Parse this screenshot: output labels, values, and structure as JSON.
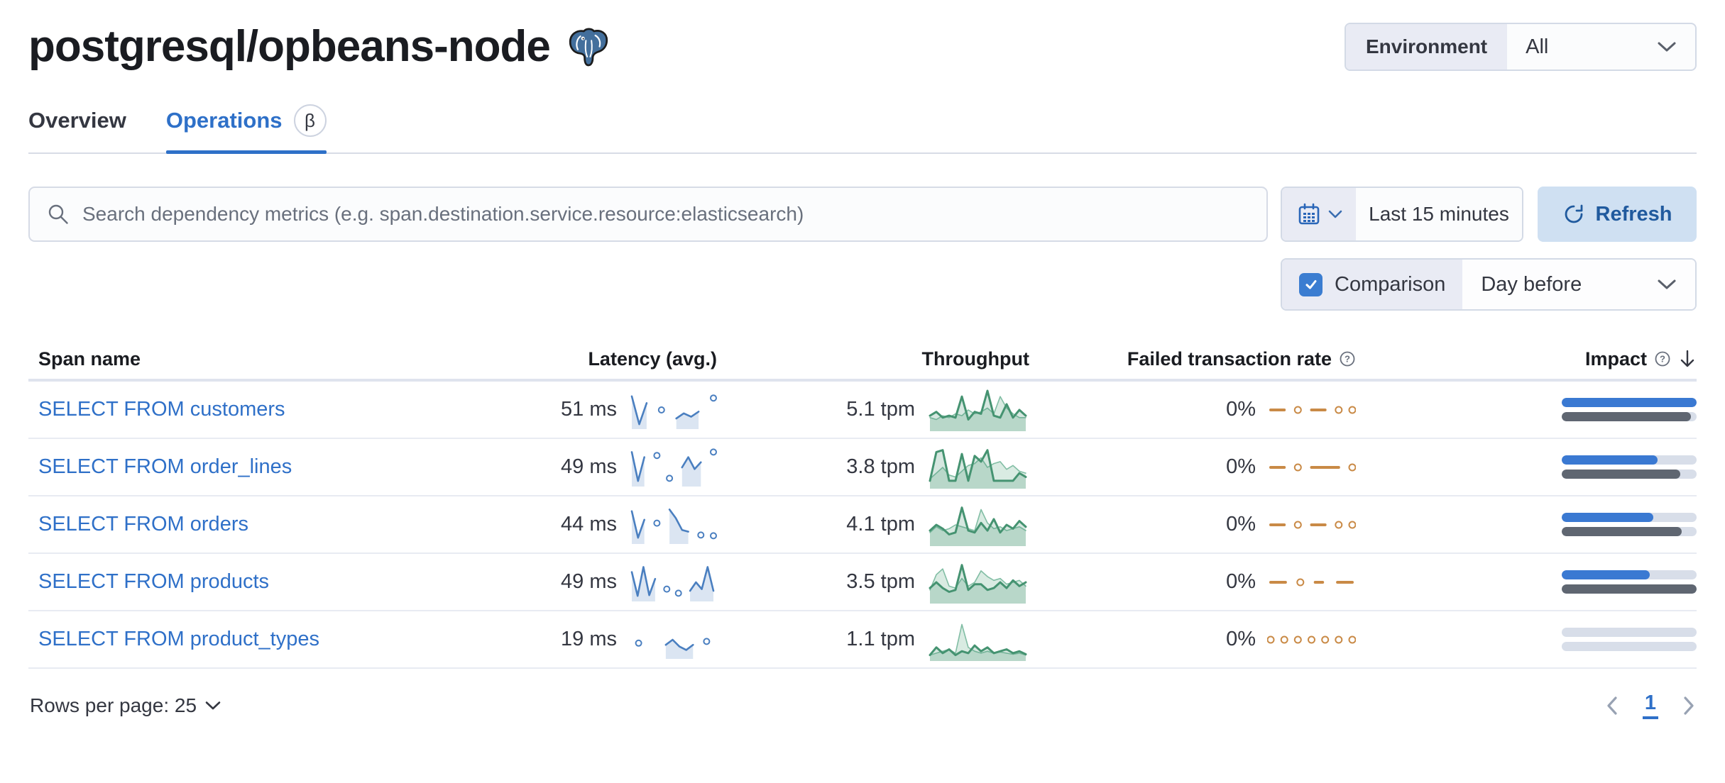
{
  "page": {
    "title": "postgresql/opbeans-node"
  },
  "environment_select": {
    "label": "Environment",
    "value": "All"
  },
  "tabs": {
    "overview": "Overview",
    "operations": "Operations",
    "operations_beta": "β"
  },
  "toolbar": {
    "search_placeholder": "Search dependency metrics (e.g. span.destination.service.resource:elasticsearch)",
    "time_range": "Last 15 minutes",
    "refresh_label": "Refresh",
    "comparison_label": "Comparison",
    "comparison_checked": true,
    "comparison_value": "Day before"
  },
  "table": {
    "headers": {
      "span_name": "Span name",
      "latency": "Latency (avg.)",
      "throughput": "Throughput",
      "failed_rate": "Failed transaction rate",
      "impact": "Impact"
    },
    "sort": {
      "column": "Impact",
      "direction": "desc"
    },
    "rows": [
      {
        "span_name": "SELECT FROM customers",
        "latency": "51 ms",
        "latency_spark": [
          0.9,
          0.08,
          0.7,
          null,
          0.5,
          null,
          0.25,
          0.4,
          0.3,
          0.45,
          null,
          0.85
        ],
        "throughput": "5.1 tpm",
        "throughput_spark": [
          0.35,
          0.45,
          0.3,
          0.35,
          0.3,
          0.85,
          0.25,
          0.45,
          0.4,
          1.0,
          0.35,
          0.3,
          0.65,
          0.3,
          0.5,
          0.35
        ],
        "throughput_spark_prev": [
          0.3,
          0.25,
          0.35,
          0.3,
          0.4,
          0.35,
          0.5,
          0.4,
          0.45,
          0.55,
          0.4,
          0.85,
          0.55,
          0.4,
          0.3,
          0.3
        ],
        "failed_rate": "0%",
        "failed_spark": [
          0.5,
          0.5,
          0.5,
          null,
          0.5,
          null,
          0.5,
          0.5,
          0.5,
          null,
          0.5,
          null,
          0.5
        ],
        "impact_current": 100,
        "impact_previous": 96
      },
      {
        "span_name": "SELECT FROM order_lines",
        "latency": "49 ms",
        "latency_spark": [
          0.95,
          0.1,
          0.8,
          null,
          0.85,
          null,
          0.18,
          null,
          0.5,
          0.8,
          0.45,
          0.65,
          null,
          0.95
        ],
        "throughput": "3.8 tpm",
        "throughput_spark": [
          0.15,
          0.9,
          0.95,
          0.15,
          0.15,
          0.85,
          0.15,
          0.8,
          0.65,
          0.95,
          0.15,
          0.15,
          0.15,
          0.15,
          0.35,
          0.25
        ],
        "throughput_spark_prev": [
          0.2,
          0.35,
          0.5,
          0.3,
          0.25,
          0.4,
          0.55,
          0.6,
          0.75,
          0.5,
          0.6,
          0.65,
          0.45,
          0.55,
          0.4,
          0.35
        ],
        "failed_rate": "0%",
        "failed_spark": [
          0.5,
          0.5,
          0.5,
          null,
          0.5,
          null,
          0.5,
          0.5,
          0.5,
          0.5,
          0.5,
          null,
          0.5
        ],
        "impact_current": 71,
        "impact_previous": 88
      },
      {
        "span_name": "SELECT FROM orders",
        "latency": "44 ms",
        "latency_spark": [
          0.9,
          0.12,
          0.65,
          null,
          0.55,
          null,
          0.95,
          0.7,
          0.35,
          0.3,
          null,
          0.2,
          null,
          0.18
        ],
        "throughput": "4.1 tpm",
        "throughput_spark": [
          0.35,
          0.5,
          0.4,
          0.25,
          0.3,
          0.95,
          0.35,
          0.3,
          0.55,
          0.35,
          0.65,
          0.3,
          0.5,
          0.4,
          0.6,
          0.45
        ],
        "throughput_spark_prev": [
          0.3,
          0.45,
          0.35,
          0.4,
          0.5,
          0.45,
          0.4,
          0.35,
          0.9,
          0.55,
          0.4,
          0.45,
          0.35,
          0.4,
          0.45,
          0.35
        ],
        "failed_rate": "0%",
        "failed_spark": [
          0.5,
          0.5,
          0.5,
          null,
          0.5,
          null,
          0.5,
          0.5,
          0.5,
          null,
          0.5,
          null,
          0.5
        ],
        "impact_current": 68,
        "impact_previous": 89
      },
      {
        "span_name": "SELECT FROM products",
        "latency": "49 ms",
        "latency_spark": [
          0.8,
          0.1,
          0.95,
          0.12,
          0.6,
          null,
          0.3,
          null,
          0.18,
          null,
          0.25,
          0.5,
          0.3,
          0.95,
          0.25
        ],
        "throughput": "3.5 tpm",
        "throughput_spark": [
          0.35,
          0.5,
          0.35,
          0.25,
          0.3,
          0.95,
          0.3,
          0.45,
          0.45,
          0.3,
          0.35,
          0.5,
          0.35,
          0.55,
          0.4,
          0.5
        ],
        "throughput_spark_prev": [
          0.3,
          0.7,
          0.85,
          0.4,
          0.35,
          0.6,
          0.4,
          0.5,
          0.8,
          0.65,
          0.55,
          0.6,
          0.45,
          0.5,
          0.55,
          0.4
        ],
        "failed_rate": "0%",
        "failed_spark": [
          0.5,
          0.5,
          0.5,
          null,
          0.5,
          null,
          0.5,
          0.5,
          null,
          0.5,
          0.5,
          0.5
        ],
        "impact_current": 65,
        "impact_previous": 100
      },
      {
        "span_name": "SELECT FROM product_types",
        "latency": "19 ms",
        "latency_spark": [
          null,
          0.4,
          null,
          null,
          null,
          0.35,
          0.5,
          0.3,
          0.2,
          0.35,
          null,
          0.45,
          null
        ],
        "throughput": "1.1 tpm",
        "throughput_spark": [
          0.1,
          0.3,
          0.15,
          0.25,
          0.1,
          0.2,
          0.15,
          0.35,
          0.2,
          0.3,
          0.15,
          0.2,
          0.25,
          0.15,
          0.2,
          0.12
        ],
        "throughput_spark_prev": [
          0.1,
          0.15,
          0.2,
          0.25,
          0.15,
          0.9,
          0.3,
          0.2,
          0.15,
          0.2,
          0.15,
          0.18,
          0.15,
          0.12,
          0.15,
          0.1
        ],
        "failed_rate": "0%",
        "failed_spark": [
          0.5,
          null,
          0.5,
          null,
          0.5,
          null,
          0.5,
          null,
          0.5,
          null,
          0.5,
          null,
          0.5
        ],
        "impact_current": 0,
        "impact_previous": 0
      }
    ]
  },
  "footer": {
    "rows_per_page": "Rows per page: 25",
    "current_page": "1"
  },
  "colors": {
    "link_blue": "#2f70c8",
    "latency_spark": "#4a7fc0",
    "throughput_spark": "#459371",
    "failed_spark": "#c98a46",
    "impact_bar_current": "#3a79d2",
    "impact_bar_previous": "#5f6671",
    "refresh_button_bg": "#cfe0f2",
    "refresh_button_text": "#205a9e"
  }
}
